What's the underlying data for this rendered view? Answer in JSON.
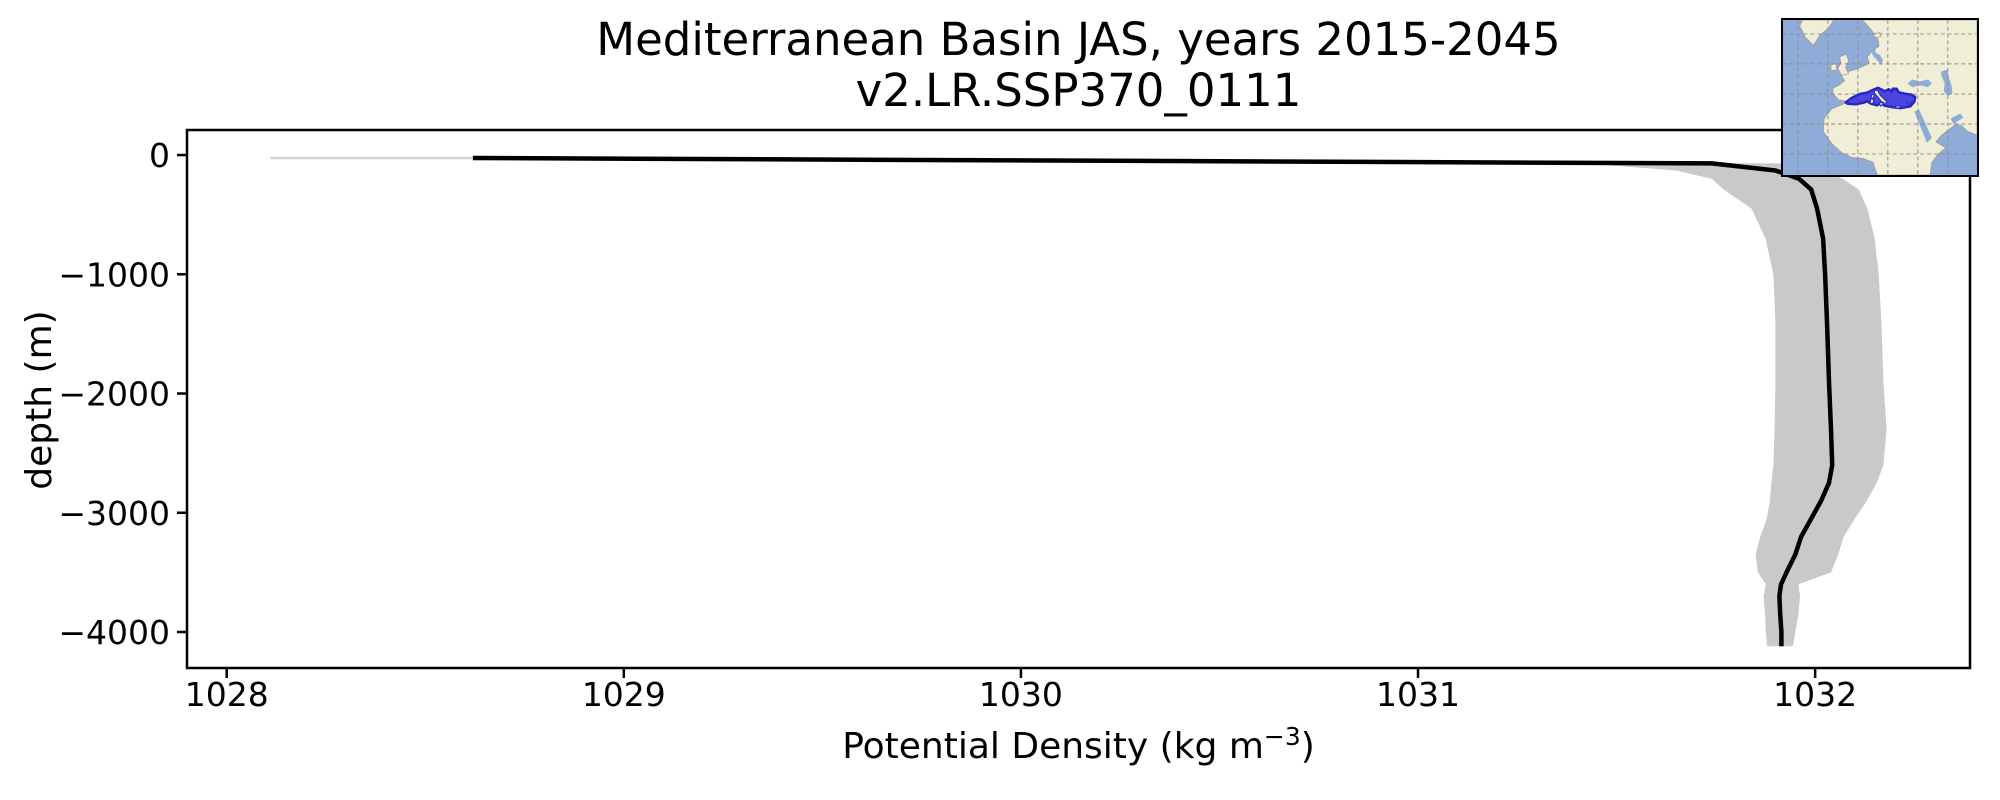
{
  "figure": {
    "background": "#ffffff"
  },
  "colors": {
    "axes": "#000000",
    "mean_line": "#000000",
    "band": "#c9c9c9",
    "surface_band_line": "#d2d2d2"
  },
  "chart_data": {
    "type": "line",
    "title": {
      "line1": "Mediterranean Basin JAS, years 2015-2045",
      "line2": "v2.LR.SSP370_0111"
    },
    "xlabel": {
      "pre": "Potential Density (kg m",
      "sup": "−3",
      "post": ")"
    },
    "ylabel": "depth (m)",
    "xlim": [
      1027.9,
      1032.39
    ],
    "ylim": [
      -4302,
      210
    ],
    "grid": false,
    "legend": "none",
    "x_ticks": [
      {
        "value": 1028,
        "label": "1028"
      },
      {
        "value": 1029,
        "label": "1029"
      },
      {
        "value": 1030,
        "label": "1030"
      },
      {
        "value": 1031,
        "label": "1031"
      },
      {
        "value": 1032,
        "label": "1032"
      }
    ],
    "y_ticks": [
      {
        "value": 0,
        "label": "0"
      },
      {
        "value": -1000,
        "label": "−1000"
      },
      {
        "value": -2000,
        "label": "−2000"
      },
      {
        "value": -3000,
        "label": "−3000"
      },
      {
        "value": -4000,
        "label": "−4000"
      }
    ],
    "series": [
      {
        "name": "mean potential density profile",
        "style": "line",
        "color": "#000000",
        "linewidth": 4.5
      },
      {
        "name": "ensemble spread band",
        "style": "band",
        "color": "#c9c9c9"
      }
    ],
    "profile": {
      "depth_m": [
        -25,
        -70,
        -130,
        -200,
        -290,
        -450,
        -700,
        -1000,
        -1400,
        -1900,
        -2300,
        -2600,
        -2750,
        -2900,
        -3050,
        -3200,
        -3350,
        -3500,
        -3600,
        -3700,
        -3850,
        -4000,
        -4120
      ],
      "mean": [
        1028.62,
        1031.74,
        1031.9,
        1031.96,
        1031.99,
        1032.005,
        1032.02,
        1032.025,
        1032.03,
        1032.035,
        1032.04,
        1032.043,
        1032.035,
        1032.015,
        1031.99,
        1031.965,
        1031.95,
        1031.928,
        1031.914,
        1031.91,
        1031.912,
        1031.915,
        1031.915
      ],
      "lower": [
        1028.11,
        1031.42,
        1031.65,
        1031.74,
        1031.77,
        1031.84,
        1031.875,
        1031.895,
        1031.9,
        1031.9,
        1031.898,
        1031.895,
        1031.89,
        1031.886,
        1031.878,
        1031.862,
        1031.85,
        1031.856,
        1031.876,
        1031.87,
        1031.874,
        1031.876,
        1031.879
      ],
      "upper": [
        1028.68,
        1031.93,
        1032.02,
        1032.07,
        1032.11,
        1032.132,
        1032.15,
        1032.16,
        1032.167,
        1032.172,
        1032.18,
        1032.172,
        1032.155,
        1032.13,
        1032.1,
        1032.072,
        1032.058,
        1032.04,
        1031.958,
        1031.962,
        1031.958,
        1031.95,
        1031.944
      ]
    },
    "surface_segment": {
      "depth_m": -25,
      "from": 1028.11,
      "to": 1028.62
    }
  },
  "map_inset": {
    "description": "Locator map of Europe / North Africa with the Mediterranean Basin region highlighted",
    "highlight_region": "Mediterranean Basin",
    "colors": {
      "ocean": "#8fabd8",
      "land": "#f1eed7",
      "coast": "#97968c",
      "grid": "#8d8d8d",
      "highlight_fill": "#4a45e0",
      "highlight_edge": "#2b26c0",
      "border": "#000000"
    }
  }
}
